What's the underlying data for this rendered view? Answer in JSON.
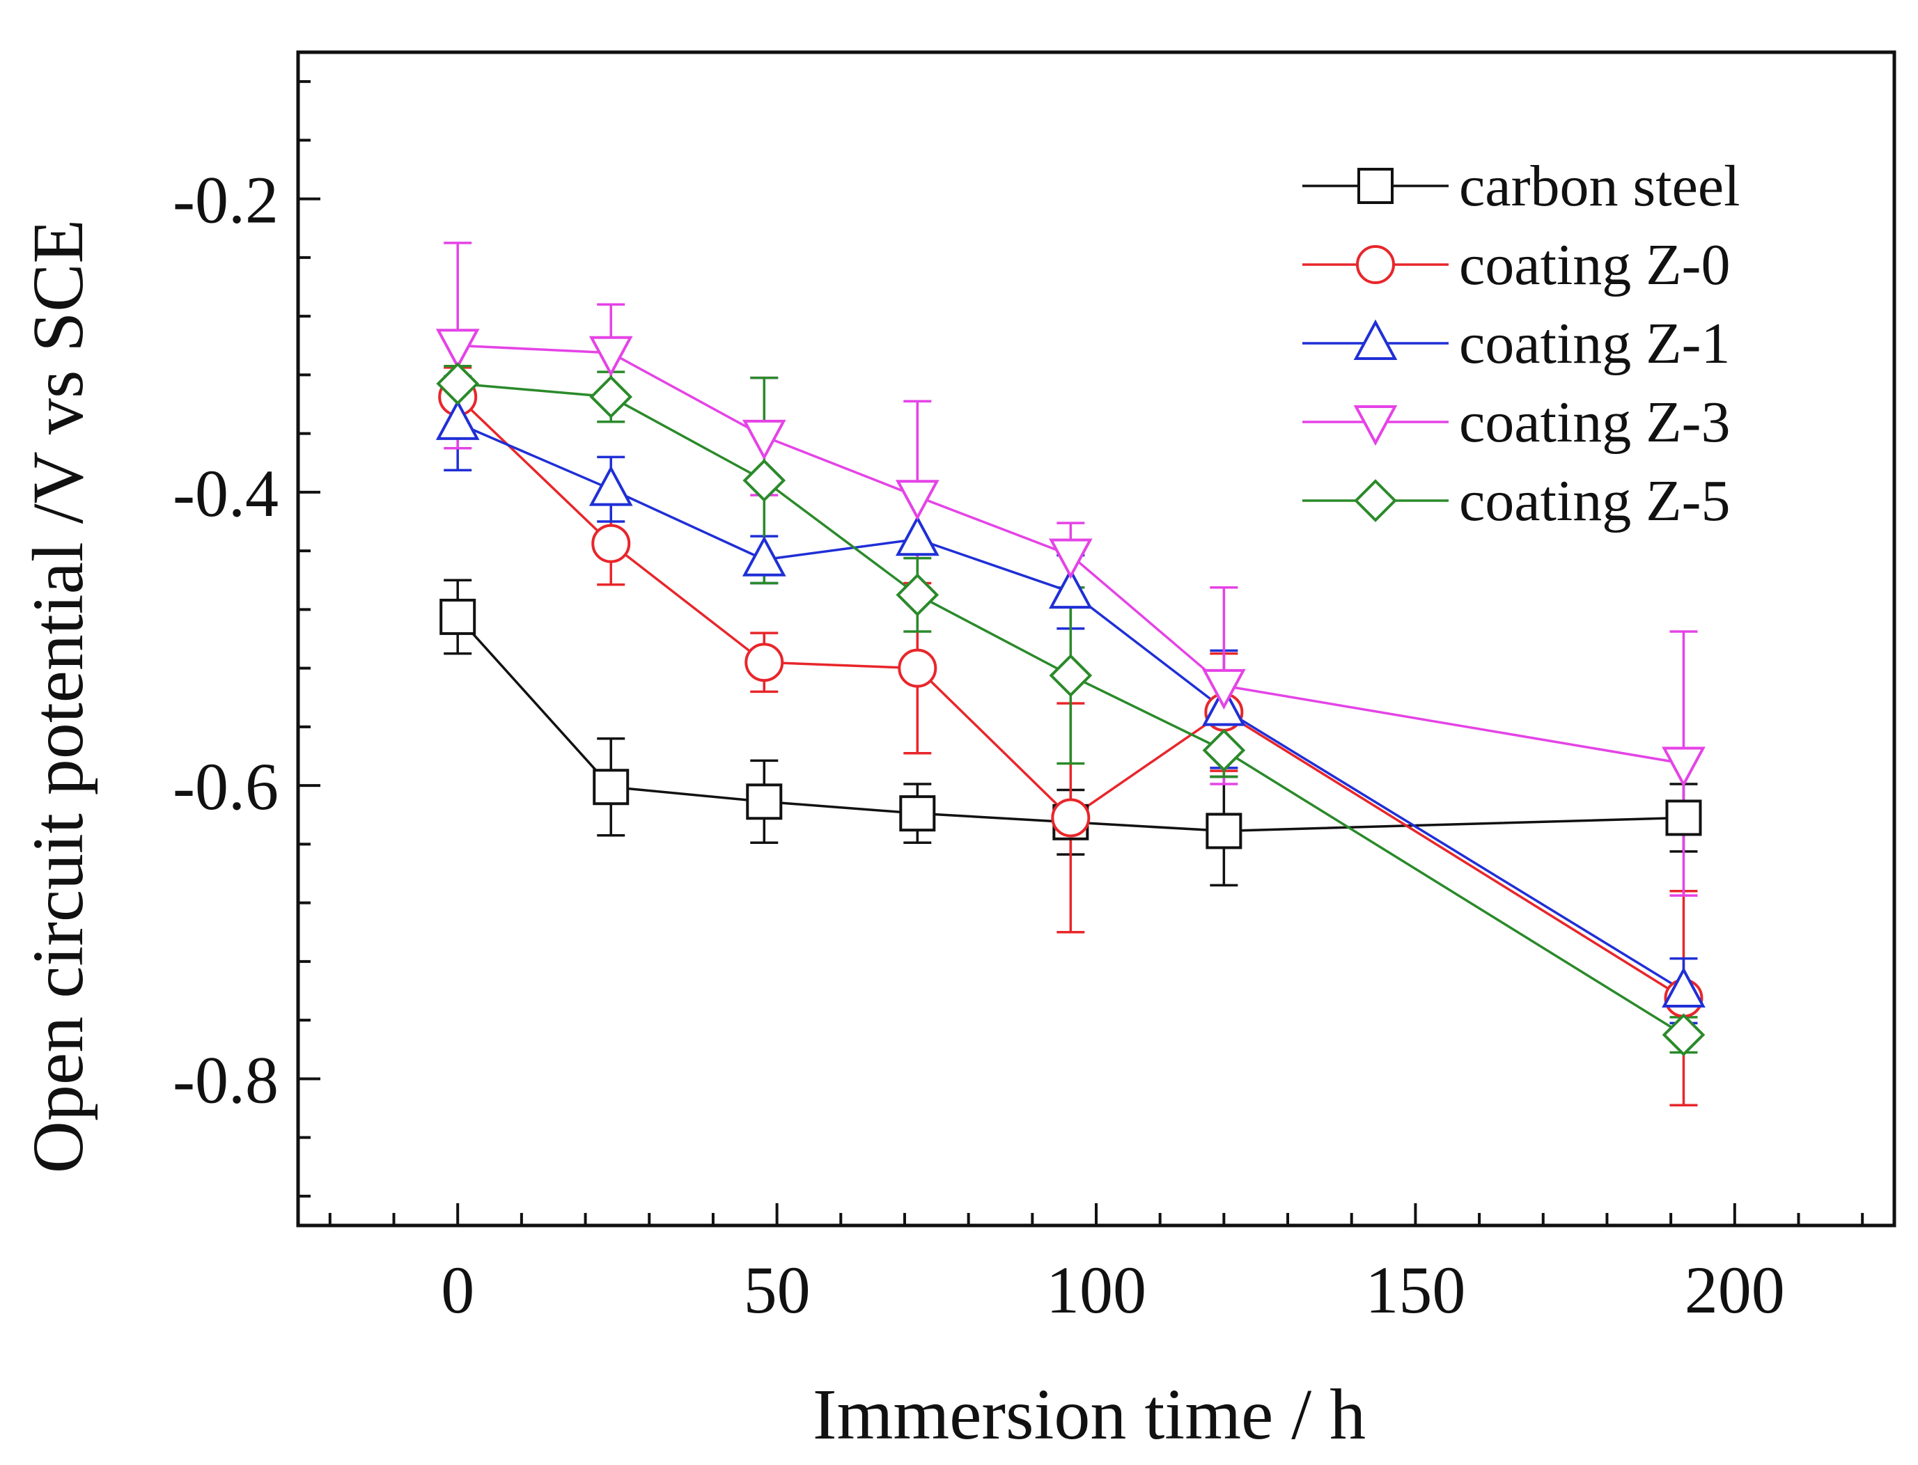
{
  "chart_data": {
    "type": "line",
    "title": "",
    "xlabel": "Immersion time / h",
    "ylabel": "Open circuit potential /V vs SCE",
    "xlim": [
      -25,
      225
    ],
    "ylim": [
      -0.9,
      -0.1
    ],
    "xticks": [
      0,
      50,
      100,
      150,
      200
    ],
    "yticks": [
      -0.8,
      -0.6,
      -0.4,
      -0.2
    ],
    "xtick_labels": [
      "0",
      "50",
      "100",
      "150",
      "200"
    ],
    "ytick_labels": [
      "-0.8",
      "-0.6",
      "-0.4",
      "-0.2"
    ],
    "grid": false,
    "legend_position": "top-right",
    "x": [
      0,
      24,
      48,
      72,
      96,
      120,
      192
    ],
    "series": [
      {
        "name": "carbon steel",
        "color": "#111111",
        "marker": "square",
        "values": [
          -0.485,
          -0.601,
          -0.611,
          -0.619,
          -0.625,
          -0.631,
          -0.622
        ],
        "errors": [
          0.025,
          0.033,
          0.028,
          0.02,
          0.022,
          0.037,
          0.023
        ]
      },
      {
        "name": "coating Z-0",
        "color": "#e8262b",
        "marker": "circle",
        "values": [
          -0.335,
          -0.435,
          -0.516,
          -0.52,
          -0.622,
          -0.55,
          -0.745
        ],
        "errors": [
          0.02,
          0.028,
          0.02,
          0.058,
          0.078,
          0.04,
          0.073
        ]
      },
      {
        "name": "coating Z-1",
        "color": "#1f2fd6",
        "marker": "triangle-up",
        "values": [
          -0.353,
          -0.398,
          -0.446,
          -0.432,
          -0.468,
          -0.548,
          -0.74
        ],
        "errors": [
          0.032,
          0.022,
          0.016,
          0.035,
          0.025,
          0.04,
          0.022
        ]
      },
      {
        "name": "coating Z-3",
        "color": "#e543e6",
        "marker": "triangle-down",
        "values": [
          -0.3,
          -0.305,
          -0.362,
          -0.403,
          -0.443,
          -0.532,
          -0.585
        ],
        "errors": [
          0.07,
          0.033,
          0.04,
          0.065,
          0.022,
          0.067,
          0.09
        ]
      },
      {
        "name": "coating Z-5",
        "color": "#2a8a2a",
        "marker": "diamond",
        "values": [
          -0.326,
          -0.335,
          -0.392,
          -0.47,
          -0.525,
          -0.576,
          -0.77
        ],
        "errors": [
          0.012,
          0.017,
          0.07,
          0.025,
          0.06,
          0.018,
          0.012
        ]
      }
    ]
  }
}
